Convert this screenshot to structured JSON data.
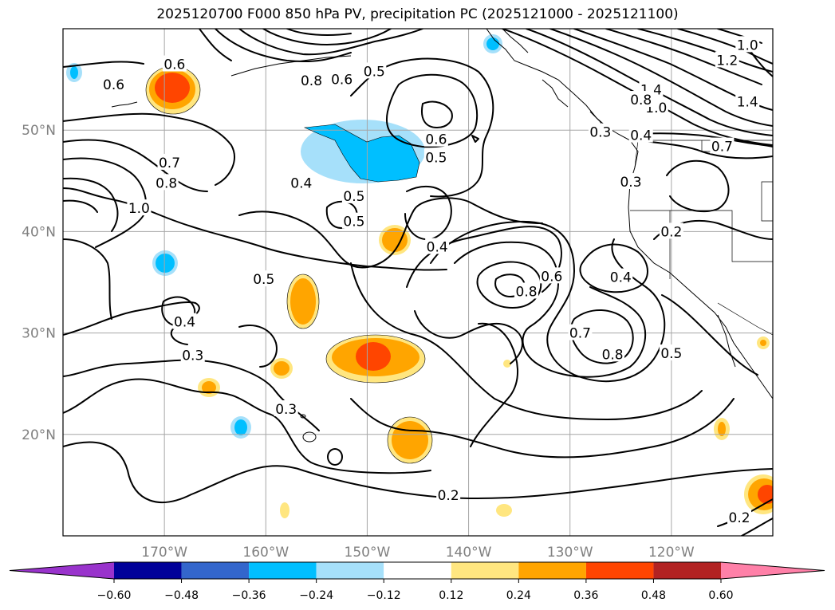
{
  "title": "2025120700 F000 850 hPa PV, precipitation PC (2025121000 - 2025121100)",
  "map": {
    "lon_range": [
      -180,
      -110
    ],
    "lat_range": [
      10,
      60
    ],
    "lon_ticks": [
      -170,
      -160,
      -150,
      -140,
      -130,
      -120
    ],
    "lat_ticks": [
      20,
      30,
      40,
      50
    ],
    "lon_labels": [
      "170°W",
      "160°W",
      "150°W",
      "140°W",
      "130°W",
      "120°W"
    ],
    "lat_labels": [
      "20°N",
      "30°N",
      "40°N",
      "50°N"
    ],
    "grid": true
  },
  "colorbar": {
    "levels": [
      -0.6,
      -0.48,
      -0.36,
      -0.24,
      -0.12,
      0.12,
      0.24,
      0.36,
      0.48,
      0.6
    ],
    "labels": [
      "−0.60",
      "−0.48",
      "−0.36",
      "−0.24",
      "−0.12",
      "0.12",
      "0.24",
      "0.36",
      "0.48",
      "0.60"
    ],
    "colors": [
      "#9933cc",
      "#000099",
      "#3366cc",
      "#00bfff",
      "#a6e0fa",
      "#ffffff",
      "#ffe680",
      "#ffa500",
      "#ff4500",
      "#b22222",
      "#ff80a8"
    ],
    "extend": "both"
  },
  "contour_labels": [
    {
      "text": "0.6",
      "lon": -169.0,
      "lat": 56.5
    },
    {
      "text": "0.6",
      "lon": -175.0,
      "lat": 54.5
    },
    {
      "text": "0.8",
      "lon": -155.5,
      "lat": 54.9
    },
    {
      "text": "0.6",
      "lon": -152.5,
      "lat": 55.0
    },
    {
      "text": "0.5",
      "lon": -149.3,
      "lat": 55.8
    },
    {
      "text": "0.6",
      "lon": -143.2,
      "lat": 49.1
    },
    {
      "text": "0.5",
      "lon": -143.2,
      "lat": 47.3
    },
    {
      "text": "0.7",
      "lon": -169.5,
      "lat": 46.8
    },
    {
      "text": "0.8",
      "lon": -169.8,
      "lat": 44.8
    },
    {
      "text": "1.0",
      "lon": -172.5,
      "lat": 42.3
    },
    {
      "text": "0.4",
      "lon": -156.5,
      "lat": 44.8
    },
    {
      "text": "0.5",
      "lon": -151.3,
      "lat": 43.5
    },
    {
      "text": "0.5",
      "lon": -151.3,
      "lat": 41.0
    },
    {
      "text": "0.4",
      "lon": -143.1,
      "lat": 38.5
    },
    {
      "text": "0.5",
      "lon": -160.2,
      "lat": 35.3
    },
    {
      "text": "0.8",
      "lon": -134.3,
      "lat": 34.1
    },
    {
      "text": "0.6",
      "lon": -131.8,
      "lat": 35.6
    },
    {
      "text": "0.4",
      "lon": -125.0,
      "lat": 35.5
    },
    {
      "text": "0.7",
      "lon": -129.0,
      "lat": 30.0
    },
    {
      "text": "0.8",
      "lon": -125.8,
      "lat": 27.9
    },
    {
      "text": "0.5",
      "lon": -120.0,
      "lat": 28.0
    },
    {
      "text": "0.4",
      "lon": -168.0,
      "lat": 31.1
    },
    {
      "text": "0.3",
      "lon": -167.2,
      "lat": 27.8
    },
    {
      "text": "0.3",
      "lon": -158.0,
      "lat": 22.5
    },
    {
      "text": "0.2",
      "lon": -142.0,
      "lat": 14.0
    },
    {
      "text": "0.2",
      "lon": -120.0,
      "lat": 40.0
    },
    {
      "text": "0.2",
      "lon": -113.3,
      "lat": 11.8
    },
    {
      "text": "0.3",
      "lon": -124.0,
      "lat": 44.9
    },
    {
      "text": "0.7",
      "lon": -115.0,
      "lat": 48.4
    },
    {
      "text": "0.4",
      "lon": -123.0,
      "lat": 49.5
    },
    {
      "text": "1.4",
      "lon": -122.0,
      "lat": 54.0
    },
    {
      "text": "1.0",
      "lon": -121.5,
      "lat": 52.2
    },
    {
      "text": "0.8",
      "lon": -123.0,
      "lat": 53.0
    },
    {
      "text": "1.2",
      "lon": -114.5,
      "lat": 56.9
    },
    {
      "text": "1.0",
      "lon": -112.5,
      "lat": 58.4
    },
    {
      "text": "1.4",
      "lon": -112.5,
      "lat": 52.8
    },
    {
      "text": "0.3",
      "lon": -127.0,
      "lat": 49.8
    }
  ]
}
